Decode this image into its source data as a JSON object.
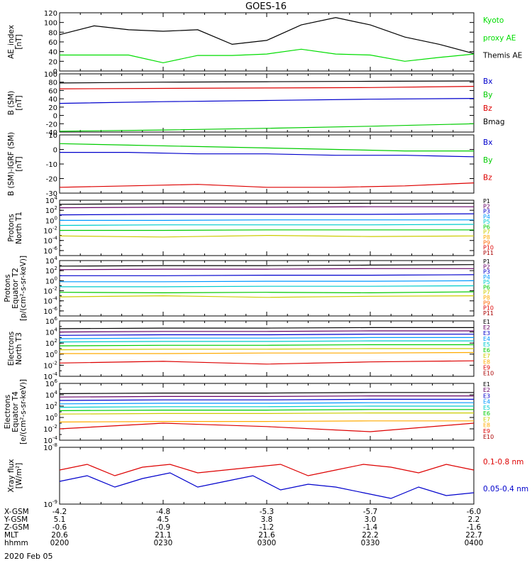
{
  "title": "GOES-16",
  "date_label": "2020 Feb 05",
  "axis_rows": [
    {
      "label": "X-GSM",
      "values": [
        "-4.2",
        "-4.8",
        "-5.3",
        "-5.7",
        "-6.0"
      ]
    },
    {
      "label": "Y-GSM",
      "values": [
        "5.1",
        "4.5",
        "3.8",
        "3.0",
        "2.2"
      ]
    },
    {
      "label": "Z-GSM",
      "values": [
        "-0.6",
        "-0.9",
        "-1.2",
        "-1.4",
        "-1.6"
      ]
    },
    {
      "label": "MLT",
      "values": [
        "20.6",
        "21.1",
        "21.6",
        "22.2",
        "22.7"
      ]
    },
    {
      "label": "hhmm",
      "values": [
        "0200",
        "0230",
        "0300",
        "0330",
        "0400"
      ]
    }
  ],
  "chart_data": [
    {
      "type": "line",
      "ylabel": [
        "AE_index",
        "[nT]"
      ],
      "ylim": [
        0,
        120
      ],
      "yticks": [
        "0",
        "20",
        "40",
        "60",
        "80",
        "100",
        "120"
      ],
      "x": [
        0,
        10,
        20,
        30,
        40,
        50,
        60,
        70,
        80,
        90,
        100,
        110,
        120
      ],
      "series": [
        {
          "name": "Themis AE",
          "color": "#000000",
          "values": [
            75,
            93,
            85,
            82,
            85,
            55,
            63,
            95,
            110,
            95,
            70,
            55,
            36
          ]
        },
        {
          "name": "Kyoto proxy AE",
          "color": "#00dd00",
          "values": [
            33,
            33,
            33,
            17,
            32,
            32,
            35,
            45,
            35,
            33,
            20,
            28,
            35
          ]
        }
      ],
      "legend": [
        {
          "text": "Kyoto",
          "color": "#00dd00"
        },
        {
          "text": "proxy AE",
          "color": "#00dd00"
        },
        {
          "text": "Themis AE",
          "color": "#000000"
        }
      ]
    },
    {
      "type": "line",
      "ylabel": [
        "B (SM)",
        "[nT]"
      ],
      "ylim": [
        -40,
        100
      ],
      "yticks": [
        "-40",
        "-20",
        "0",
        "20",
        "40",
        "60",
        "80",
        "100"
      ],
      "x": [
        0,
        30,
        60,
        90,
        120
      ],
      "series": [
        {
          "name": "Bmag",
          "color": "#000000",
          "values": [
            78,
            80,
            81,
            82,
            83
          ]
        },
        {
          "name": "Bz",
          "color": "#dd0000",
          "values": [
            64,
            65,
            66,
            67,
            70
          ]
        },
        {
          "name": "Bx",
          "color": "#0000cc",
          "values": [
            29,
            33,
            36,
            39,
            41
          ]
        },
        {
          "name": "By",
          "color": "#00cc00",
          "values": [
            -38,
            -35,
            -31,
            -26,
            -20
          ]
        }
      ],
      "legend": [
        {
          "text": "Bx",
          "color": "#0000cc"
        },
        {
          "text": "By",
          "color": "#00cc00"
        },
        {
          "text": "Bz",
          "color": "#dd0000"
        },
        {
          "text": "Bmag",
          "color": "#000000"
        }
      ]
    },
    {
      "type": "line",
      "ylabel": [
        "B (SM)-IGRF (SM)",
        "[nT]"
      ],
      "ylim": [
        -30,
        10
      ],
      "yticks": [
        "-30",
        "-20",
        "-10",
        "0",
        "10"
      ],
      "x": [
        0,
        20,
        40,
        60,
        80,
        100,
        120
      ],
      "series": [
        {
          "name": "By",
          "color": "#00cc00",
          "values": [
            4,
            3,
            2,
            1,
            0,
            -1,
            -1
          ]
        },
        {
          "name": "Bx",
          "color": "#0000cc",
          "values": [
            -2,
            -2,
            -3,
            -3,
            -4,
            -4,
            -5
          ]
        },
        {
          "name": "Bz",
          "color": "#dd0000",
          "values": [
            -26,
            -25,
            -24,
            -26,
            -26,
            -25,
            -23
          ]
        }
      ],
      "legend": [
        {
          "text": "Bx",
          "color": "#0000cc"
        },
        {
          "text": "By",
          "color": "#00cc00"
        },
        {
          "text": "Bz",
          "color": "#dd0000"
        }
      ]
    },
    {
      "type": "line",
      "scale": "log",
      "ylabel": [
        "Protons",
        "North T1"
      ],
      "ylim_exp": [
        -7,
        4
      ],
      "ytick_exps": [
        -6,
        -4,
        -2,
        0,
        2,
        4
      ],
      "x": [
        0,
        30,
        60,
        90,
        120
      ],
      "series": [
        {
          "name": "P1",
          "color": "#000000",
          "values_exp": [
            3.2,
            3.3,
            3.3,
            3.4,
            3.4
          ]
        },
        {
          "name": "P2",
          "color": "#660066",
          "values_exp": [
            2.5,
            2.6,
            2.6,
            2.7,
            2.7
          ]
        },
        {
          "name": "P3",
          "color": "#0000cc",
          "values_exp": [
            1.1,
            1.2,
            1.2,
            1.2,
            1.3
          ]
        },
        {
          "name": "P4",
          "color": "#0099ff",
          "values_exp": [
            0.0,
            0.0,
            0.1,
            0.1,
            0.1
          ]
        },
        {
          "name": "P5",
          "color": "#00cccc",
          "values_exp": [
            -1.0,
            -0.9,
            -0.9,
            -0.9,
            -0.8
          ]
        },
        {
          "name": "P6",
          "color": "#00cc00",
          "values_exp": [
            -2.0,
            -2.0,
            -1.9,
            -1.9,
            -1.9
          ]
        },
        {
          "name": "P7",
          "color": "#cccc00",
          "values_exp": [
            -3.1,
            -3.3,
            -3.0,
            -3.2,
            -3.1
          ]
        }
      ],
      "legend": [
        {
          "text": "P1",
          "color": "#000000"
        },
        {
          "text": "P2",
          "color": "#660066"
        },
        {
          "text": "P3",
          "color": "#0000cc"
        },
        {
          "text": "P4",
          "color": "#0099ff"
        },
        {
          "text": "P5",
          "color": "#00cccc"
        },
        {
          "text": "P6",
          "color": "#00cc00"
        },
        {
          "text": "P7",
          "color": "#cccc00"
        },
        {
          "text": "P8",
          "color": "#ffaa00"
        },
        {
          "text": "P9",
          "color": "#ff6600"
        },
        {
          "text": "P10",
          "color": "#dd0000"
        },
        {
          "text": "P11",
          "color": "#aa0000"
        }
      ]
    },
    {
      "type": "line",
      "scale": "log",
      "ylabel": [
        "Protons",
        "Equator T2",
        "[p/(cm²-s-sr-keV)]"
      ],
      "ylim_exp": [
        -7,
        4
      ],
      "ytick_exps": [
        -6,
        -4,
        -2,
        0,
        2,
        4
      ],
      "x": [
        0,
        30,
        60,
        90,
        120
      ],
      "series": [
        {
          "name": "P1",
          "color": "#000000",
          "values_exp": [
            2.9,
            3.0,
            3.0,
            3.1,
            3.2
          ]
        },
        {
          "name": "P2",
          "color": "#660066",
          "values_exp": [
            2.2,
            2.3,
            2.3,
            2.4,
            2.4
          ]
        },
        {
          "name": "P3",
          "color": "#0000cc",
          "values_exp": [
            1.0,
            1.0,
            1.1,
            1.1,
            1.2
          ]
        },
        {
          "name": "P4",
          "color": "#0099ff",
          "values_exp": [
            -0.2,
            -0.2,
            -0.1,
            -0.1,
            0.0
          ]
        },
        {
          "name": "P5",
          "color": "#00cccc",
          "values_exp": [
            -1.2,
            -1.2,
            -1.1,
            -1.1,
            -1.0
          ]
        },
        {
          "name": "P6",
          "color": "#00cc00",
          "values_exp": [
            -2.3,
            -2.4,
            -2.3,
            -2.4,
            -2.2
          ]
        },
        {
          "name": "P7",
          "color": "#cccc00",
          "values_exp": [
            -3.2,
            -3.0,
            -3.3,
            -3.1,
            -3.0
          ]
        }
      ],
      "legend": [
        {
          "text": "P1",
          "color": "#000000"
        },
        {
          "text": "P2",
          "color": "#660066"
        },
        {
          "text": "P3",
          "color": "#0000cc"
        },
        {
          "text": "P4",
          "color": "#0099ff"
        },
        {
          "text": "P5",
          "color": "#00cccc"
        },
        {
          "text": "P6",
          "color": "#00cc00"
        },
        {
          "text": "P7",
          "color": "#cccc00"
        },
        {
          "text": "P8",
          "color": "#ffaa00"
        },
        {
          "text": "P9",
          "color": "#ff6600"
        },
        {
          "text": "P10",
          "color": "#dd0000"
        },
        {
          "text": "P11",
          "color": "#aa0000"
        }
      ]
    },
    {
      "type": "line",
      "scale": "log",
      "ylabel": [
        "Electrons",
        "North T3"
      ],
      "ylim_exp": [
        -4,
        6
      ],
      "ytick_exps": [
        -4,
        -2,
        0,
        2,
        4,
        6
      ],
      "x": [
        0,
        30,
        60,
        90,
        120
      ],
      "series": [
        {
          "name": "E1",
          "color": "#000000",
          "values_exp": [
            4.6,
            4.7,
            4.7,
            4.8,
            4.8
          ]
        },
        {
          "name": "E2",
          "color": "#660066",
          "values_exp": [
            4.0,
            4.1,
            4.1,
            4.2,
            4.2
          ]
        },
        {
          "name": "E3",
          "color": "#0000cc",
          "values_exp": [
            3.4,
            3.5,
            3.5,
            3.6,
            3.6
          ]
        },
        {
          "name": "E4",
          "color": "#0099ff",
          "values_exp": [
            2.8,
            2.9,
            2.9,
            3.0,
            3.0
          ]
        },
        {
          "name": "E5",
          "color": "#00cccc",
          "values_exp": [
            2.2,
            2.3,
            2.3,
            2.4,
            2.4
          ]
        },
        {
          "name": "E6",
          "color": "#00cc00",
          "values_exp": [
            1.5,
            1.6,
            1.6,
            1.7,
            1.7
          ]
        },
        {
          "name": "E7",
          "color": "#cccc00",
          "values_exp": [
            0.8,
            0.9,
            0.9,
            1.0,
            1.0
          ]
        },
        {
          "name": "E8",
          "color": "#ffaa00",
          "values_exp": [
            0.1,
            0.1,
            0.2,
            0.2,
            0.3
          ]
        },
        {
          "name": "E9",
          "color": "#dd0000",
          "values_exp": [
            -1.6,
            -1.3,
            -1.8,
            -1.4,
            -1.2
          ]
        }
      ],
      "legend": [
        {
          "text": "E1",
          "color": "#000000"
        },
        {
          "text": "E2",
          "color": "#660066"
        },
        {
          "text": "E3",
          "color": "#0000cc"
        },
        {
          "text": "E4",
          "color": "#0099ff"
        },
        {
          "text": "E5",
          "color": "#00cccc"
        },
        {
          "text": "E6",
          "color": "#00cc00"
        },
        {
          "text": "E7",
          "color": "#cccc00"
        },
        {
          "text": "E8",
          "color": "#ffaa00"
        },
        {
          "text": "E9",
          "color": "#dd0000"
        },
        {
          "text": "E10",
          "color": "#aa0000"
        }
      ]
    },
    {
      "type": "line",
      "scale": "log",
      "ylabel": [
        "Electrons",
        "Equator T4",
        "[e/(cm²-s-sr-keV)]"
      ],
      "ylim_exp": [
        -4,
        6
      ],
      "ytick_exps": [
        -4,
        -2,
        0,
        2,
        4,
        6
      ],
      "x": [
        0,
        30,
        60,
        90,
        120
      ],
      "series": [
        {
          "name": "E1",
          "color": "#000000",
          "values_exp": [
            4.2,
            4.3,
            4.3,
            4.4,
            4.4
          ]
        },
        {
          "name": "E2",
          "color": "#660066",
          "values_exp": [
            3.6,
            3.7,
            3.7,
            3.8,
            3.8
          ]
        },
        {
          "name": "E3",
          "color": "#0000cc",
          "values_exp": [
            3.0,
            3.1,
            3.1,
            3.2,
            3.2
          ]
        },
        {
          "name": "E4",
          "color": "#0099ff",
          "values_exp": [
            2.4,
            2.5,
            2.5,
            2.6,
            2.6
          ]
        },
        {
          "name": "E5",
          "color": "#00cccc",
          "values_exp": [
            1.8,
            1.9,
            1.9,
            2.0,
            2.0
          ]
        },
        {
          "name": "E6",
          "color": "#00cc00",
          "values_exp": [
            1.2,
            1.3,
            1.3,
            1.4,
            1.4
          ]
        },
        {
          "name": "E7",
          "color": "#cccc00",
          "values_exp": [
            0.6,
            0.7,
            0.7,
            0.8,
            0.8
          ]
        },
        {
          "name": "E8",
          "color": "#ffaa00",
          "values_exp": [
            -0.8,
            -0.7,
            -0.7,
            -0.6,
            -0.6
          ]
        },
        {
          "name": "E9",
          "color": "#dd0000",
          "values_exp": [
            -2.0,
            -1.0,
            -1.6,
            -2.5,
            -1.0
          ]
        }
      ],
      "legend": [
        {
          "text": "E1",
          "color": "#000000"
        },
        {
          "text": "E2",
          "color": "#660066"
        },
        {
          "text": "E3",
          "color": "#0000cc"
        },
        {
          "text": "E4",
          "color": "#0099ff"
        },
        {
          "text": "E5",
          "color": "#00cccc"
        },
        {
          "text": "E6",
          "color": "#00cc00"
        },
        {
          "text": "E7",
          "color": "#cccc00"
        },
        {
          "text": "E8",
          "color": "#ffaa00"
        },
        {
          "text": "E9",
          "color": "#dd0000"
        },
        {
          "text": "E10",
          "color": "#aa0000"
        }
      ]
    },
    {
      "type": "line",
      "scale": "log",
      "ylabel": [
        "Xray flux",
        "[W/m²]"
      ],
      "ylim_exp": [
        -9,
        -8
      ],
      "ytick_exps": [
        -9,
        -8
      ],
      "x": [
        0,
        8,
        16,
        24,
        32,
        40,
        48,
        56,
        64,
        72,
        80,
        88,
        96,
        104,
        112,
        120
      ],
      "series": [
        {
          "name": "0.1-0.8 nm",
          "color": "#dd0000",
          "values_exp": [
            -8.4,
            -8.3,
            -8.5,
            -8.35,
            -8.3,
            -8.45,
            -8.4,
            -8.35,
            -8.3,
            -8.5,
            -8.4,
            -8.3,
            -8.35,
            -8.45,
            -8.3,
            -8.4
          ]
        },
        {
          "name": "0.05-0.4 nm",
          "color": "#0000cc",
          "values_exp": [
            -8.6,
            -8.5,
            -8.7,
            -8.55,
            -8.45,
            -8.7,
            -8.6,
            -8.5,
            -8.75,
            -8.65,
            -8.7,
            -8.8,
            -8.9,
            -8.7,
            -8.85,
            -8.8
          ]
        }
      ],
      "legend": [
        {
          "text": "0.1-0.8 nm",
          "color": "#dd0000"
        },
        {
          "text": "0.05-0.4 nm",
          "color": "#0000cc"
        }
      ]
    }
  ]
}
